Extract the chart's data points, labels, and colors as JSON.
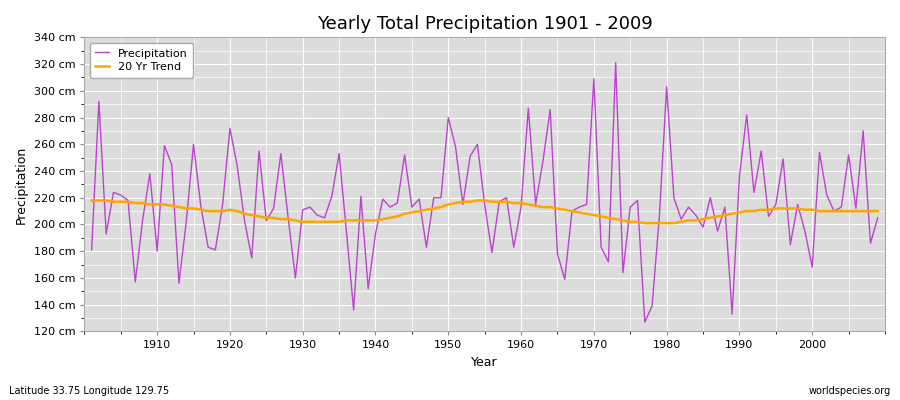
{
  "title": "Yearly Total Precipitation 1901 - 2009",
  "xlabel": "Year",
  "ylabel": "Precipitation",
  "subtitle_left": "Latitude 33.75 Longitude 129.75",
  "subtitle_right": "worldspecies.org",
  "legend_precipitation": "Precipitation",
  "legend_trend": "20 Yr Trend",
  "precip_color": "#BB44CC",
  "trend_color": "#FFA500",
  "fig_background": "#FFFFFF",
  "plot_background": "#DCDCDC",
  "grid_color": "#FFFFFF",
  "ylim": [
    120,
    340
  ],
  "yticks": [
    120,
    140,
    160,
    180,
    200,
    220,
    240,
    260,
    280,
    300,
    320,
    340
  ],
  "xlim_min": 1900,
  "xlim_max": 2010,
  "years": [
    1901,
    1902,
    1903,
    1904,
    1905,
    1906,
    1907,
    1908,
    1909,
    1910,
    1911,
    1912,
    1913,
    1914,
    1915,
    1916,
    1917,
    1918,
    1919,
    1920,
    1921,
    1922,
    1923,
    1924,
    1925,
    1926,
    1927,
    1928,
    1929,
    1930,
    1931,
    1932,
    1933,
    1934,
    1935,
    1936,
    1937,
    1938,
    1939,
    1940,
    1941,
    1942,
    1943,
    1944,
    1945,
    1946,
    1947,
    1948,
    1949,
    1950,
    1951,
    1952,
    1953,
    1954,
    1955,
    1956,
    1957,
    1958,
    1959,
    1960,
    1961,
    1962,
    1963,
    1964,
    1965,
    1966,
    1967,
    1968,
    1969,
    1970,
    1971,
    1972,
    1973,
    1974,
    1975,
    1976,
    1977,
    1978,
    1979,
    1980,
    1981,
    1982,
    1983,
    1984,
    1985,
    1986,
    1987,
    1988,
    1989,
    1990,
    1991,
    1992,
    1993,
    1994,
    1995,
    1996,
    1997,
    1998,
    1999,
    2000,
    2001,
    2002,
    2003,
    2004,
    2005,
    2006,
    2007,
    2008,
    2009
  ],
  "precip": [
    181,
    292,
    193,
    224,
    222,
    218,
    157,
    203,
    238,
    180,
    259,
    245,
    156,
    202,
    260,
    214,
    183,
    181,
    215,
    272,
    244,
    203,
    175,
    255,
    203,
    212,
    253,
    205,
    160,
    211,
    213,
    207,
    205,
    221,
    253,
    195,
    136,
    221,
    152,
    193,
    219,
    213,
    216,
    252,
    213,
    219,
    183,
    220,
    220,
    280,
    258,
    215,
    251,
    260,
    215,
    179,
    217,
    220,
    183,
    213,
    287,
    215,
    247,
    286,
    178,
    159,
    210,
    213,
    215,
    309,
    183,
    172,
    321,
    164,
    213,
    218,
    127,
    139,
    206,
    303,
    220,
    204,
    213,
    207,
    198,
    220,
    195,
    213,
    133,
    236,
    282,
    224,
    255,
    206,
    215,
    249,
    185,
    215,
    195,
    168,
    254,
    222,
    210,
    213,
    252,
    212,
    270,
    186,
    205
  ],
  "trend": [
    218,
    218,
    218,
    217,
    217,
    217,
    216,
    216,
    215,
    215,
    215,
    214,
    213,
    212,
    212,
    211,
    210,
    210,
    210,
    211,
    210,
    208,
    207,
    206,
    205,
    205,
    204,
    204,
    203,
    202,
    202,
    202,
    202,
    202,
    202,
    203,
    203,
    203,
    203,
    203,
    204,
    205,
    206,
    208,
    209,
    210,
    211,
    212,
    213,
    215,
    216,
    217,
    217,
    218,
    218,
    217,
    217,
    217,
    216,
    216,
    215,
    214,
    213,
    213,
    212,
    211,
    210,
    209,
    208,
    207,
    206,
    205,
    204,
    203,
    202,
    202,
    201,
    201,
    201,
    201,
    201,
    202,
    203,
    203,
    204,
    205,
    206,
    207,
    208,
    209,
    210,
    210,
    211,
    211,
    212,
    212,
    212,
    212,
    211,
    211,
    210,
    210,
    210,
    210,
    210,
    210,
    210,
    210,
    210
  ]
}
